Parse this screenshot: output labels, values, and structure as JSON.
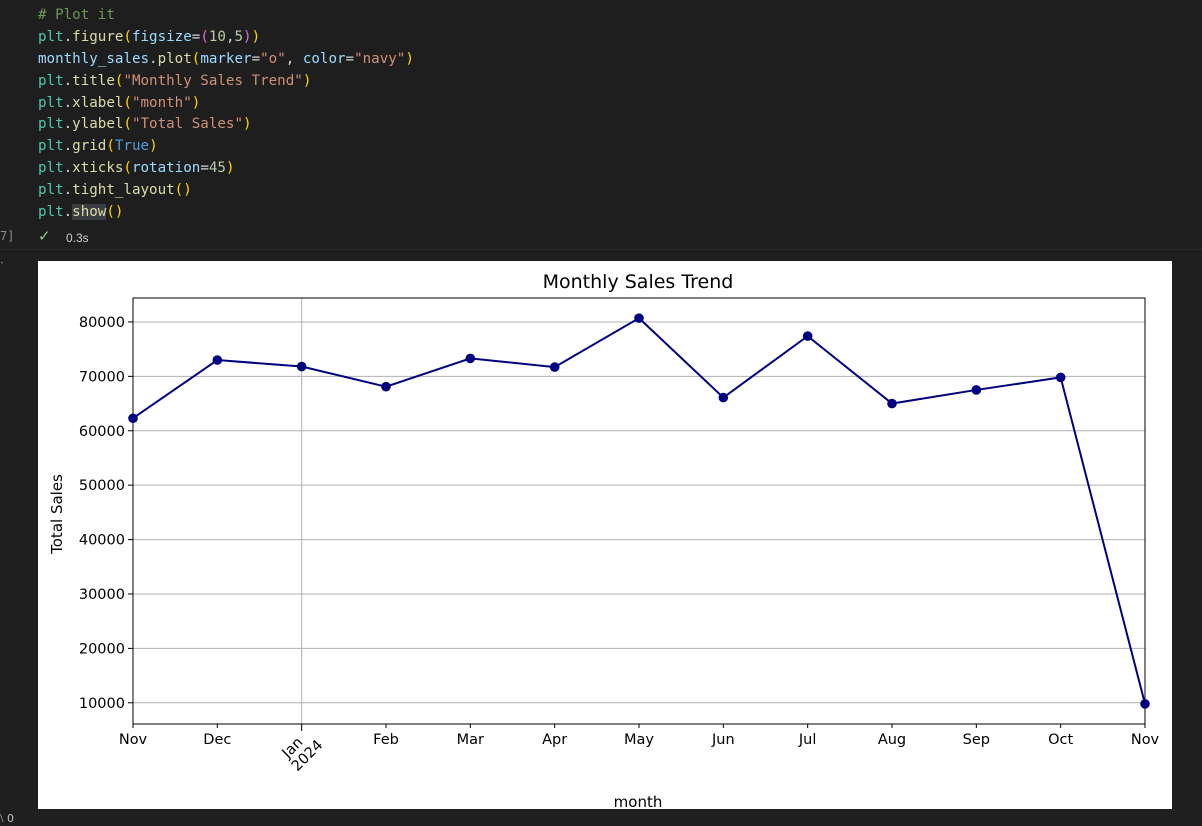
{
  "code": {
    "lines": [
      [
        {
          "t": "# Plot it",
          "c": "tok-comment"
        }
      ],
      [
        {
          "t": "plt",
          "c": "tok-ident"
        },
        {
          "t": ".",
          "c": "tok-punc"
        },
        {
          "t": "figure",
          "c": "tok-func"
        },
        {
          "t": "(",
          "c": "tok-paren"
        },
        {
          "t": "figsize",
          "c": "tok-var"
        },
        {
          "t": "=",
          "c": "tok-punc"
        },
        {
          "t": "(",
          "c": "tok-paren2"
        },
        {
          "t": "10",
          "c": "tok-num"
        },
        {
          "t": ",",
          "c": "tok-punc"
        },
        {
          "t": "5",
          "c": "tok-num"
        },
        {
          "t": ")",
          "c": "tok-paren2"
        },
        {
          "t": ")",
          "c": "tok-paren"
        }
      ],
      [
        {
          "t": "monthly_sales",
          "c": "tok-var"
        },
        {
          "t": ".",
          "c": "tok-punc"
        },
        {
          "t": "plot",
          "c": "tok-func"
        },
        {
          "t": "(",
          "c": "tok-paren"
        },
        {
          "t": "marker",
          "c": "tok-var"
        },
        {
          "t": "=",
          "c": "tok-punc"
        },
        {
          "t": "\"o\"",
          "c": "tok-str"
        },
        {
          "t": ", ",
          "c": "tok-punc"
        },
        {
          "t": "color",
          "c": "tok-var"
        },
        {
          "t": "=",
          "c": "tok-punc"
        },
        {
          "t": "\"navy\"",
          "c": "tok-str"
        },
        {
          "t": ")",
          "c": "tok-paren"
        }
      ],
      [
        {
          "t": "plt",
          "c": "tok-ident"
        },
        {
          "t": ".",
          "c": "tok-punc"
        },
        {
          "t": "title",
          "c": "tok-func"
        },
        {
          "t": "(",
          "c": "tok-paren"
        },
        {
          "t": "\"Monthly Sales Trend\"",
          "c": "tok-str"
        },
        {
          "t": ")",
          "c": "tok-paren"
        }
      ],
      [
        {
          "t": "plt",
          "c": "tok-ident"
        },
        {
          "t": ".",
          "c": "tok-punc"
        },
        {
          "t": "xlabel",
          "c": "tok-func"
        },
        {
          "t": "(",
          "c": "tok-paren"
        },
        {
          "t": "\"month\"",
          "c": "tok-str"
        },
        {
          "t": ")",
          "c": "tok-paren"
        }
      ],
      [
        {
          "t": "plt",
          "c": "tok-ident"
        },
        {
          "t": ".",
          "c": "tok-punc"
        },
        {
          "t": "ylabel",
          "c": "tok-func"
        },
        {
          "t": "(",
          "c": "tok-paren"
        },
        {
          "t": "\"Total Sales\"",
          "c": "tok-str"
        },
        {
          "t": ")",
          "c": "tok-paren"
        }
      ],
      [
        {
          "t": "plt",
          "c": "tok-ident"
        },
        {
          "t": ".",
          "c": "tok-punc"
        },
        {
          "t": "grid",
          "c": "tok-func"
        },
        {
          "t": "(",
          "c": "tok-paren"
        },
        {
          "t": "True",
          "c": "tok-kw"
        },
        {
          "t": ")",
          "c": "tok-paren"
        }
      ],
      [
        {
          "t": "plt",
          "c": "tok-ident"
        },
        {
          "t": ".",
          "c": "tok-punc"
        },
        {
          "t": "xticks",
          "c": "tok-func"
        },
        {
          "t": "(",
          "c": "tok-paren"
        },
        {
          "t": "rotation",
          "c": "tok-var"
        },
        {
          "t": "=",
          "c": "tok-punc"
        },
        {
          "t": "45",
          "c": "tok-num"
        },
        {
          "t": ")",
          "c": "tok-paren"
        }
      ],
      [
        {
          "t": "plt",
          "c": "tok-ident"
        },
        {
          "t": ".",
          "c": "tok-punc"
        },
        {
          "t": "tight_layout",
          "c": "tok-func"
        },
        {
          "t": "()",
          "c": "tok-paren"
        }
      ],
      [
        {
          "t": "plt",
          "c": "tok-ident"
        },
        {
          "t": ".",
          "c": "tok-punc"
        },
        {
          "t": "show",
          "c": "tok-func hl"
        },
        {
          "t": "()",
          "c": "tok-paren"
        }
      ]
    ]
  },
  "execution": {
    "count_fragment": "7]",
    "status_icon": "check-icon",
    "duration": "0.3s"
  },
  "colors": {
    "line": "#000080",
    "grid": "#b0b0b0",
    "success": "#89d185"
  },
  "chart_data": {
    "type": "line",
    "title": "Monthly Sales Trend",
    "xlabel": "month",
    "ylabel": "Total Sales",
    "grid": true,
    "x": [
      "2023-11",
      "2023-12",
      "2024-01",
      "2024-02",
      "2024-03",
      "2024-04",
      "2024-05",
      "2024-06",
      "2024-07",
      "2024-08",
      "2024-09",
      "2024-10",
      "2024-11"
    ],
    "tick_labels": [
      "Nov",
      "Dec",
      "Jan\n2024",
      "Feb",
      "Mar",
      "Apr",
      "May",
      "Jun",
      "Jul",
      "Aug",
      "Sep",
      "Oct",
      "Nov"
    ],
    "series": [
      {
        "values": [
          62300,
          73000,
          71800,
          68100,
          73300,
          71700,
          80700,
          66100,
          77400,
          65000,
          67500,
          69800,
          9800
        ]
      }
    ],
    "yticks": [
      10000,
      20000,
      30000,
      40000,
      50000,
      60000,
      70000,
      80000
    ],
    "ylim": [
      6100,
      84400
    ]
  }
}
